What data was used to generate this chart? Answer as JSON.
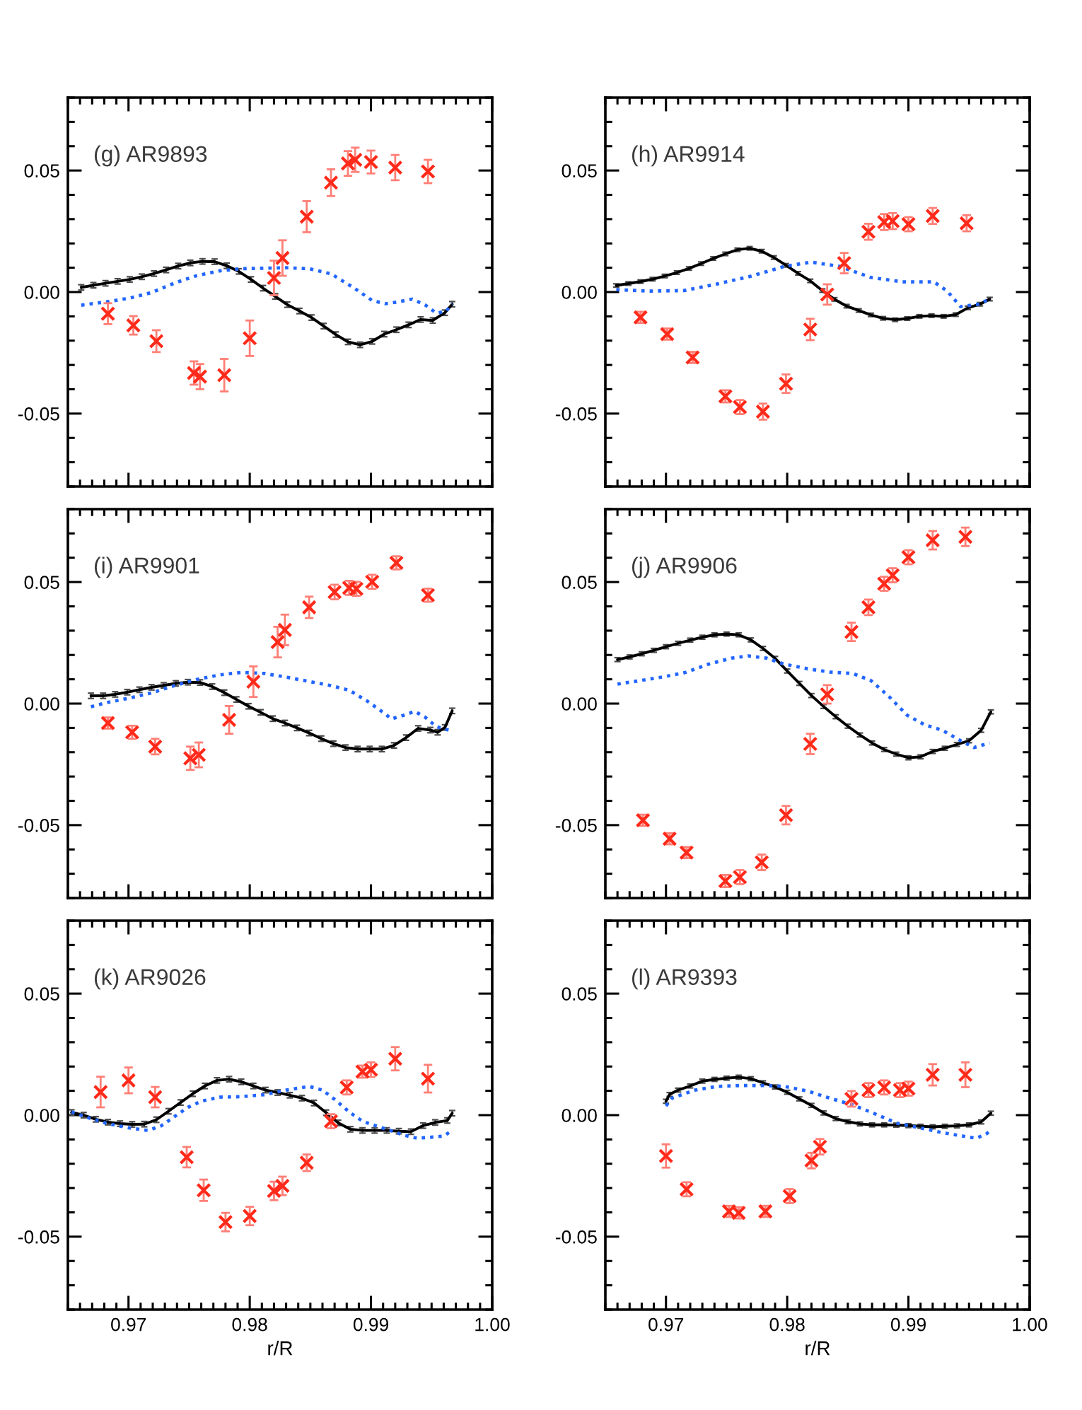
{
  "chart_data": [
    {
      "type": "line",
      "title": "(g) AR9893",
      "xlim": [
        0.965,
        1.0
      ],
      "ylim": [
        -0.08,
        0.08
      ],
      "xticks": [
        {
          "value": 0.97,
          "label": null
        },
        {
          "value": 0.98,
          "label": null
        },
        {
          "value": 0.99,
          "label": null
        },
        {
          "value": 1.0,
          "label": null
        }
      ],
      "yticks": [
        {
          "value": -0.05,
          "label": "-0.05"
        },
        {
          "value": 0,
          "label": "0.00"
        },
        {
          "value": 0.05,
          "label": "0.05"
        }
      ],
      "tick_labels": "y",
      "series": [
        {
          "color": "#000000",
          "line_style": "solid",
          "x": [
            0.9661,
            0.9671,
            0.9681,
            0.9691,
            0.9701,
            0.9711,
            0.9721,
            0.9731,
            0.9741,
            0.9751,
            0.9761,
            0.9771,
            0.9781,
            0.9791,
            0.9801,
            0.9811,
            0.9821,
            0.9831,
            0.9841,
            0.9851,
            0.9861,
            0.9871,
            0.9881,
            0.9891,
            0.9901,
            0.9911,
            0.9921,
            0.9931,
            0.9941,
            0.9951,
            0.9961,
            0.9967
          ],
          "values": [
            0.0019,
            0.0028,
            0.0036,
            0.0044,
            0.0052,
            0.0063,
            0.0076,
            0.0091,
            0.0107,
            0.012,
            0.0126,
            0.0125,
            0.0108,
            0.0085,
            0.0052,
            0.0016,
            -0.0018,
            -0.0052,
            -0.0078,
            -0.0105,
            -0.014,
            -0.0175,
            -0.0205,
            -0.0217,
            -0.0203,
            -0.0173,
            -0.0155,
            -0.0135,
            -0.0113,
            -0.0117,
            -0.0085,
            -0.005
          ],
          "errors": [
            0.0011,
            0.0011,
            0.0011,
            0.0011,
            0.0011,
            0.0011,
            0.0011,
            0.0011,
            0.0011,
            0.0011,
            0.0011,
            0.0011,
            0.0011,
            0.0011,
            0.0011,
            0.0011,
            0.0011,
            0.0011,
            0.0011,
            0.0011,
            0.0011,
            0.0011,
            0.0011,
            0.0011,
            0.0011,
            0.0011,
            0.0011,
            0.0011,
            0.0011,
            0.0011,
            0.0011,
            0.0011
          ]
        },
        {
          "color": "#2266ff",
          "line_style": "dotted",
          "x": [
            0.9661,
            0.9682,
            0.9701,
            0.9719,
            0.9738,
            0.9756,
            0.9775,
            0.9793,
            0.9812,
            0.983,
            0.9849,
            0.9867,
            0.9886,
            0.9901,
            0.9912,
            0.9923,
            0.9934,
            0.9945,
            0.9954,
            0.9962,
            0.9967
          ],
          "values": [
            -0.0054,
            -0.004,
            -0.0025,
            -0.0002,
            0.0037,
            0.0067,
            0.0087,
            0.0096,
            0.0098,
            0.01,
            0.0096,
            0.0075,
            0.0017,
            -0.0035,
            -0.0048,
            -0.004,
            -0.0029,
            -0.0054,
            -0.0087,
            -0.0079,
            -0.0048
          ]
        },
        {
          "type": "scatter",
          "color": "#ff2a1a",
          "marker": "cross",
          "x": [
            0.9683,
            0.9704,
            0.9723,
            0.9754,
            0.9759,
            0.9779,
            0.98,
            0.982,
            0.9827,
            0.9847,
            0.9867,
            0.9881,
            0.9887,
            0.99,
            0.992,
            0.9947
          ],
          "values": [
            -0.0089,
            -0.0137,
            -0.0202,
            -0.0333,
            -0.0348,
            -0.0342,
            -0.019,
            0.0058,
            0.014,
            0.031,
            0.045,
            0.0529,
            0.0544,
            0.0535,
            0.0512,
            0.0496
          ],
          "errors": [
            0.0043,
            0.0038,
            0.0045,
            0.0048,
            0.0052,
            0.0067,
            0.0073,
            0.0071,
            0.0073,
            0.0064,
            0.0055,
            0.0051,
            0.005,
            0.0047,
            0.0052,
            0.0048
          ]
        }
      ]
    },
    {
      "type": "line",
      "title": "(h) AR9914",
      "xlim": [
        0.965,
        1.0
      ],
      "ylim": [
        -0.08,
        0.08
      ],
      "xticks": [
        {
          "value": 0.97,
          "label": null
        },
        {
          "value": 0.98,
          "label": null
        },
        {
          "value": 0.99,
          "label": null
        },
        {
          "value": 1.0,
          "label": null
        }
      ],
      "yticks": [
        {
          "value": -0.05,
          "label": "-0.05"
        },
        {
          "value": 0,
          "label": "0.00"
        },
        {
          "value": 0.05,
          "label": "0.05"
        }
      ],
      "tick_labels": "y",
      "series": [
        {
          "color": "#000000",
          "line_style": "solid",
          "x": [
            0.9659,
            0.9669,
            0.9679,
            0.9689,
            0.9699,
            0.9709,
            0.9719,
            0.9729,
            0.9739,
            0.9749,
            0.9759,
            0.9769,
            0.9779,
            0.9789,
            0.9799,
            0.9809,
            0.9819,
            0.9829,
            0.9839,
            0.9849,
            0.9859,
            0.9869,
            0.9879,
            0.9889,
            0.9899,
            0.9909,
            0.9919,
            0.9929,
            0.9939,
            0.9949,
            0.9959,
            0.9967
          ],
          "values": [
            0.0027,
            0.0035,
            0.0043,
            0.0053,
            0.0066,
            0.008,
            0.0097,
            0.0117,
            0.0138,
            0.0157,
            0.0174,
            0.018,
            0.0168,
            0.0142,
            0.011,
            0.0077,
            0.0046,
            0.0006,
            -0.003,
            -0.0058,
            -0.0076,
            -0.0094,
            -0.0108,
            -0.0114,
            -0.0109,
            -0.01,
            -0.0097,
            -0.01,
            -0.0093,
            -0.0065,
            -0.005,
            -0.0029
          ],
          "errors": [
            0.0007,
            0.0007,
            0.0007,
            0.0007,
            0.0007,
            0.0007,
            0.0007,
            0.0007,
            0.0007,
            0.0007,
            0.0007,
            0.0007,
            0.0007,
            0.0007,
            0.0007,
            0.0007,
            0.0007,
            0.0007,
            0.0007,
            0.0007,
            0.0007,
            0.0007,
            0.0007,
            0.0007,
            0.0007,
            0.0007,
            0.0007,
            0.0007,
            0.0007,
            0.0007,
            0.0007,
            0.0007
          ]
        },
        {
          "color": "#2266ff",
          "line_style": "dotted",
          "x": [
            0.9659,
            0.9687,
            0.9715,
            0.9742,
            0.977,
            0.9798,
            0.982,
            0.9843,
            0.9869,
            0.9895,
            0.9921,
            0.9932,
            0.9943,
            0.9958,
            0.9967
          ],
          "values": [
            0.001,
            0.0004,
            0.0006,
            0.0033,
            0.0065,
            0.0106,
            0.0123,
            0.0106,
            0.006,
            0.0042,
            0.0042,
            0.0004,
            -0.006,
            -0.005,
            -0.0029
          ]
        },
        {
          "type": "scatter",
          "color": "#ff2a1a",
          "marker": "cross",
          "x": [
            0.9679,
            0.9701,
            0.9722,
            0.9749,
            0.9761,
            0.978,
            0.9799,
            0.9819,
            0.9833,
            0.9847,
            0.9867,
            0.988,
            0.9887,
            0.99,
            0.992,
            0.9948
          ],
          "values": [
            -0.0104,
            -0.0173,
            -0.0269,
            -0.0429,
            -0.0473,
            -0.0492,
            -0.0377,
            -0.0154,
            -0.001,
            0.0119,
            0.0248,
            0.0288,
            0.0292,
            0.0279,
            0.0313,
            0.0283
          ],
          "errors": [
            0.0023,
            0.0023,
            0.0023,
            0.0025,
            0.0029,
            0.0033,
            0.0038,
            0.0044,
            0.0042,
            0.0042,
            0.0033,
            0.0033,
            0.0033,
            0.0029,
            0.0033,
            0.0033
          ]
        }
      ]
    },
    {
      "type": "line",
      "title": "(i) AR9901",
      "xlim": [
        0.965,
        1.0
      ],
      "ylim": [
        -0.08,
        0.08
      ],
      "xticks": [
        {
          "value": 0.97,
          "label": null
        },
        {
          "value": 0.98,
          "label": null
        },
        {
          "value": 0.99,
          "label": null
        },
        {
          "value": 1.0,
          "label": null
        }
      ],
      "yticks": [
        {
          "value": -0.05,
          "label": "-0.05"
        },
        {
          "value": 0,
          "label": "0.00"
        },
        {
          "value": 0.05,
          "label": "0.05"
        }
      ],
      "tick_labels": "y",
      "series": [
        {
          "color": "#000000",
          "line_style": "solid",
          "x": [
            0.9669,
            0.9679,
            0.9689,
            0.9699,
            0.9709,
            0.9719,
            0.9729,
            0.9739,
            0.9749,
            0.9759,
            0.9769,
            0.9779,
            0.9789,
            0.9799,
            0.9809,
            0.9819,
            0.9829,
            0.9839,
            0.9849,
            0.9859,
            0.9869,
            0.9879,
            0.9889,
            0.9899,
            0.9909,
            0.9919,
            0.9929,
            0.9939,
            0.9949,
            0.9955,
            0.9961,
            0.9967
          ],
          "values": [
            0.0032,
            0.0032,
            0.0038,
            0.0047,
            0.0057,
            0.0067,
            0.0075,
            0.0083,
            0.0088,
            0.0087,
            0.007,
            0.0045,
            0.0017,
            -0.0011,
            -0.0036,
            -0.0062,
            -0.008,
            -0.01,
            -0.0121,
            -0.0144,
            -0.0165,
            -0.0181,
            -0.0187,
            -0.0187,
            -0.0187,
            -0.0172,
            -0.014,
            -0.0102,
            -0.0109,
            -0.0118,
            -0.0098,
            -0.003
          ],
          "errors": [
            0.0011,
            0.0011,
            0.0011,
            0.0011,
            0.0011,
            0.0011,
            0.0011,
            0.0011,
            0.0011,
            0.0011,
            0.0011,
            0.0011,
            0.0011,
            0.0011,
            0.0011,
            0.0011,
            0.0011,
            0.0011,
            0.0011,
            0.0011,
            0.0011,
            0.0011,
            0.0011,
            0.0011,
            0.0011,
            0.0011,
            0.0011,
            0.0011,
            0.0011,
            0.0011,
            0.0011,
            0.0011
          ]
        },
        {
          "color": "#2266ff",
          "line_style": "dotted",
          "x": [
            0.9669,
            0.9682,
            0.9701,
            0.9719,
            0.9738,
            0.9756,
            0.9775,
            0.9793,
            0.9812,
            0.983,
            0.9849,
            0.9867,
            0.9882,
            0.9897,
            0.9908,
            0.9917,
            0.9927,
            0.9936,
            0.9945,
            0.9954,
            0.9964
          ],
          "values": [
            -0.0013,
            0.0004,
            0.0023,
            0.0044,
            0.0074,
            0.0099,
            0.0118,
            0.0128,
            0.0124,
            0.0109,
            0.0091,
            0.0074,
            0.0055,
            0.001,
            -0.0029,
            -0.0063,
            -0.0048,
            -0.0032,
            -0.0057,
            -0.0095,
            -0.0109
          ]
        },
        {
          "type": "scatter",
          "color": "#ff2a1a",
          "marker": "cross",
          "x": [
            0.9683,
            0.9703,
            0.9722,
            0.9751,
            0.9758,
            0.9783,
            0.9803,
            0.9823,
            0.9829,
            0.9849,
            0.987,
            0.9882,
            0.9888,
            0.9901,
            0.9921,
            0.9947
          ],
          "values": [
            -0.008,
            -0.0118,
            -0.0177,
            -0.0225,
            -0.0211,
            -0.0067,
            0.009,
            0.0253,
            0.0303,
            0.0396,
            0.0459,
            0.0476,
            0.0472,
            0.0501,
            0.0579,
            0.0446
          ],
          "errors": [
            0.0023,
            0.0027,
            0.0032,
            0.0048,
            0.0051,
            0.0057,
            0.0063,
            0.0063,
            0.0063,
            0.0044,
            0.003,
            0.0029,
            0.0029,
            0.0029,
            0.0027,
            0.0027
          ]
        }
      ]
    },
    {
      "type": "line",
      "title": "(j) AR9906",
      "xlim": [
        0.965,
        1.0
      ],
      "ylim": [
        -0.08,
        0.08
      ],
      "xticks": [
        {
          "value": 0.97,
          "label": null
        },
        {
          "value": 0.98,
          "label": null
        },
        {
          "value": 0.99,
          "label": null
        },
        {
          "value": 1.0,
          "label": null
        }
      ],
      "yticks": [
        {
          "value": -0.05,
          "label": "-0.05"
        },
        {
          "value": 0,
          "label": "0.00"
        },
        {
          "value": 0.05,
          "label": "0.05"
        }
      ],
      "tick_labels": "y",
      "series": [
        {
          "color": "#000000",
          "line_style": "solid",
          "x": [
            0.966,
            0.967,
            0.968,
            0.969,
            0.97,
            0.971,
            0.972,
            0.973,
            0.974,
            0.975,
            0.976,
            0.977,
            0.978,
            0.979,
            0.98,
            0.981,
            0.982,
            0.983,
            0.984,
            0.985,
            0.986,
            0.987,
            0.988,
            0.989,
            0.99,
            0.991,
            0.992,
            0.993,
            0.994,
            0.995,
            0.996,
            0.9968
          ],
          "values": [
            0.0181,
            0.0192,
            0.0205,
            0.0219,
            0.0234,
            0.0248,
            0.0261,
            0.0273,
            0.0283,
            0.0286,
            0.0283,
            0.0262,
            0.0227,
            0.0186,
            0.0134,
            0.0083,
            0.0033,
            -0.0012,
            -0.0054,
            -0.0093,
            -0.0129,
            -0.0162,
            -0.0189,
            -0.0208,
            -0.0223,
            -0.0219,
            -0.0197,
            -0.0184,
            -0.0168,
            -0.0153,
            -0.011,
            -0.0034
          ],
          "errors": [
            0.0008,
            0.0008,
            0.0008,
            0.0008,
            0.0008,
            0.0008,
            0.0008,
            0.0008,
            0.0008,
            0.0008,
            0.0008,
            0.0008,
            0.0008,
            0.0008,
            0.0008,
            0.0008,
            0.0008,
            0.0008,
            0.0008,
            0.0008,
            0.0008,
            0.0008,
            0.0008,
            0.0008,
            0.0008,
            0.0008,
            0.0008,
            0.0008,
            0.0008,
            0.0008,
            0.0008,
            0.0008
          ]
        },
        {
          "color": "#2266ff",
          "line_style": "dotted",
          "x": [
            0.966,
            0.9679,
            0.9698,
            0.9716,
            0.9735,
            0.9754,
            0.9768,
            0.9783,
            0.9798,
            0.9817,
            0.9835,
            0.9854,
            0.9869,
            0.9884,
            0.9899,
            0.9913,
            0.9928,
            0.9943,
            0.9954,
            0.9967
          ],
          "values": [
            0.008,
            0.0095,
            0.011,
            0.0128,
            0.0162,
            0.0187,
            0.0196,
            0.0187,
            0.0162,
            0.0143,
            0.013,
            0.0124,
            0.0095,
            0.0029,
            -0.0048,
            -0.0086,
            -0.011,
            -0.0152,
            -0.0181,
            -0.0162
          ]
        },
        {
          "type": "scatter",
          "color": "#ff2a1a",
          "marker": "cross",
          "x": [
            0.9681,
            0.9703,
            0.9717,
            0.9749,
            0.9761,
            0.9779,
            0.9799,
            0.9819,
            0.9833,
            0.9853,
            0.9867,
            0.988,
            0.9887,
            0.99,
            0.992,
            0.9947
          ],
          "values": [
            -0.048,
            -0.0556,
            -0.0613,
            -0.073,
            -0.0714,
            -0.0653,
            -0.0459,
            -0.0166,
            0.0038,
            0.0295,
            0.0396,
            0.0493,
            0.0528,
            0.0602,
            0.0672,
            0.0686
          ],
          "errors": [
            0.0023,
            0.0023,
            0.0023,
            0.0025,
            0.0029,
            0.0032,
            0.0038,
            0.0042,
            0.0038,
            0.0038,
            0.0032,
            0.0029,
            0.0029,
            0.0029,
            0.0038,
            0.0038
          ]
        }
      ]
    },
    {
      "type": "line",
      "title": "(k) AR9026",
      "xlabel": "r/R",
      "xlim": [
        0.965,
        1.0
      ],
      "ylim": [
        -0.08,
        0.08
      ],
      "xticks": [
        0.97,
        0.98,
        0.99,
        {
          "value": 1.0,
          "label": "1.00"
        }
      ],
      "yticks": [
        {
          "value": -0.05,
          "label": "-0.05"
        },
        {
          "value": 0,
          "label": "0.00"
        },
        {
          "value": 0.05,
          "label": "0.05"
        }
      ],
      "series": [
        {
          "color": "#000000",
          "line_style": "solid",
          "x": [
            0.9653,
            0.9663,
            0.9673,
            0.9683,
            0.9693,
            0.9703,
            0.9713,
            0.9723,
            0.9733,
            0.9743,
            0.9753,
            0.9763,
            0.9773,
            0.9783,
            0.9793,
            0.9803,
            0.9813,
            0.9823,
            0.9833,
            0.9843,
            0.9853,
            0.9863,
            0.9873,
            0.9883,
            0.9893,
            0.9903,
            0.9913,
            0.9923,
            0.9933,
            0.9943,
            0.9953,
            0.9963,
            0.9967
          ],
          "values": [
            0.0011,
            0.0,
            -0.0017,
            -0.0029,
            -0.0035,
            -0.0038,
            -0.0037,
            -0.0019,
            0.0016,
            0.0052,
            0.0088,
            0.012,
            0.0143,
            0.0148,
            0.0137,
            0.012,
            0.0103,
            0.0093,
            0.0082,
            0.007,
            0.005,
            0.001,
            -0.0032,
            -0.0058,
            -0.0063,
            -0.0063,
            -0.0063,
            -0.0066,
            -0.0068,
            -0.0043,
            -0.003,
            -0.0022,
            0.0008
          ],
          "errors": [
            0.0011,
            0.0011,
            0.0011,
            0.0011,
            0.0011,
            0.0011,
            0.0011,
            0.0011,
            0.0011,
            0.0011,
            0.0011,
            0.0011,
            0.0011,
            0.0011,
            0.0011,
            0.0011,
            0.0011,
            0.0011,
            0.0011,
            0.0011,
            0.0011,
            0.0011,
            0.0011,
            0.0011,
            0.0011,
            0.0011,
            0.0011,
            0.0011,
            0.0011,
            0.0011,
            0.0011,
            0.0011,
            0.0011
          ]
        },
        {
          "color": "#2266ff",
          "line_style": "dotted",
          "x": [
            0.9653,
            0.9667,
            0.9682,
            0.9701,
            0.9716,
            0.9727,
            0.9738,
            0.9749,
            0.976,
            0.9775,
            0.9793,
            0.9812,
            0.983,
            0.9849,
            0.986,
            0.9871,
            0.9882,
            0.9893,
            0.9904,
            0.9916,
            0.9927,
            0.9938,
            0.9949,
            0.996,
            0.9967
          ],
          "values": [
            0.0013,
            -0.0011,
            -0.0034,
            -0.0053,
            -0.0063,
            -0.0044,
            -0.0006,
            0.0032,
            0.0057,
            0.0074,
            0.0076,
            0.0084,
            0.0103,
            0.0118,
            0.0103,
            0.0061,
            0.0013,
            -0.0025,
            -0.0044,
            -0.0063,
            -0.0082,
            -0.0095,
            -0.0091,
            -0.0086,
            -0.0063
          ]
        },
        {
          "type": "scatter",
          "color": "#ff2a1a",
          "marker": "cross",
          "x": [
            0.9677,
            0.97,
            0.9722,
            0.9748,
            0.9762,
            0.978,
            0.98,
            0.982,
            0.9827,
            0.9847,
            0.9867,
            0.988,
            0.9893,
            0.99,
            0.992,
            0.9947
          ],
          "values": [
            0.0095,
            0.0143,
            0.0074,
            -0.0173,
            -0.0309,
            -0.044,
            -0.0415,
            -0.0312,
            -0.0291,
            -0.0196,
            -0.0025,
            0.0114,
            0.0179,
            0.0187,
            0.0232,
            0.015
          ],
          "errors": [
            0.0063,
            0.0053,
            0.0042,
            0.0042,
            0.0044,
            0.0038,
            0.0038,
            0.0038,
            0.0038,
            0.0034,
            0.0029,
            0.0029,
            0.0025,
            0.003,
            0.0048,
            0.0057
          ]
        }
      ]
    },
    {
      "type": "line",
      "title": "(l) AR9393",
      "xlabel": "r/R",
      "xlim": [
        0.965,
        1.0
      ],
      "ylim": [
        -0.08,
        0.08
      ],
      "xticks": [
        0.97,
        0.98,
        0.99,
        {
          "value": 1.0,
          "label": "1.00"
        }
      ],
      "yticks": [
        {
          "value": -0.05,
          "label": "-0.05"
        },
        {
          "value": 0,
          "label": "0.00"
        },
        {
          "value": 0.05,
          "label": "0.05"
        }
      ],
      "series": [
        {
          "color": "#000000",
          "line_style": "solid",
          "x": [
            0.97,
            0.9703,
            0.971,
            0.972,
            0.973,
            0.974,
            0.975,
            0.976,
            0.977,
            0.978,
            0.979,
            0.98,
            0.981,
            0.982,
            0.983,
            0.984,
            0.985,
            0.986,
            0.987,
            0.988,
            0.989,
            0.99,
            0.991,
            0.992,
            0.993,
            0.994,
            0.995,
            0.996,
            0.9968
          ],
          "values": [
            0.0057,
            0.0085,
            0.0103,
            0.012,
            0.014,
            0.0147,
            0.0152,
            0.0156,
            0.015,
            0.0133,
            0.0116,
            0.0094,
            0.0067,
            0.004,
            0.0009,
            -0.0014,
            -0.0027,
            -0.0036,
            -0.004,
            -0.004,
            -0.0041,
            -0.0043,
            -0.0046,
            -0.0048,
            -0.0046,
            -0.0044,
            -0.004,
            -0.0028,
            0.0008
          ],
          "errors": [
            0.0008,
            0.0008,
            0.0008,
            0.0008,
            0.0008,
            0.0008,
            0.0008,
            0.0008,
            0.0008,
            0.0008,
            0.0008,
            0.0008,
            0.0008,
            0.0008,
            0.0008,
            0.0008,
            0.0008,
            0.0008,
            0.0008,
            0.0008,
            0.0008,
            0.0008,
            0.0008,
            0.0008,
            0.0008,
            0.0008,
            0.0008,
            0.0008,
            0.0008
          ]
        },
        {
          "color": "#2266ff",
          "line_style": "dotted",
          "x": [
            0.97,
            0.9705,
            0.9724,
            0.9742,
            0.9761,
            0.978,
            0.9798,
            0.9817,
            0.9835,
            0.9854,
            0.9873,
            0.9891,
            0.991,
            0.9928,
            0.9947,
            0.9956,
            0.9964,
            0.9968
          ],
          "values": [
            0.0038,
            0.007,
            0.0103,
            0.0118,
            0.0122,
            0.0122,
            0.0118,
            0.0099,
            0.007,
            0.0042,
            0.0004,
            -0.0034,
            -0.0053,
            -0.0072,
            -0.0088,
            -0.0095,
            -0.0078,
            -0.0063
          ]
        },
        {
          "type": "scatter",
          "color": "#ff2a1a",
          "marker": "cross",
          "x": [
            0.97,
            0.9717,
            0.9752,
            0.976,
            0.9782,
            0.9802,
            0.982,
            0.9827,
            0.9853,
            0.9867,
            0.988,
            0.9893,
            0.99,
            0.992,
            0.9947
          ],
          "values": [
            -0.0168,
            -0.0305,
            -0.0396,
            -0.0402,
            -0.0396,
            -0.0333,
            -0.0187,
            -0.013,
            0.0067,
            0.0103,
            0.0114,
            0.0103,
            0.0109,
            0.0166,
            0.0166
          ],
          "errors": [
            0.0048,
            0.0029,
            0.0023,
            0.0023,
            0.0023,
            0.0029,
            0.0032,
            0.0032,
            0.0032,
            0.0029,
            0.0029,
            0.0029,
            0.0029,
            0.0044,
            0.0051
          ]
        }
      ]
    }
  ]
}
